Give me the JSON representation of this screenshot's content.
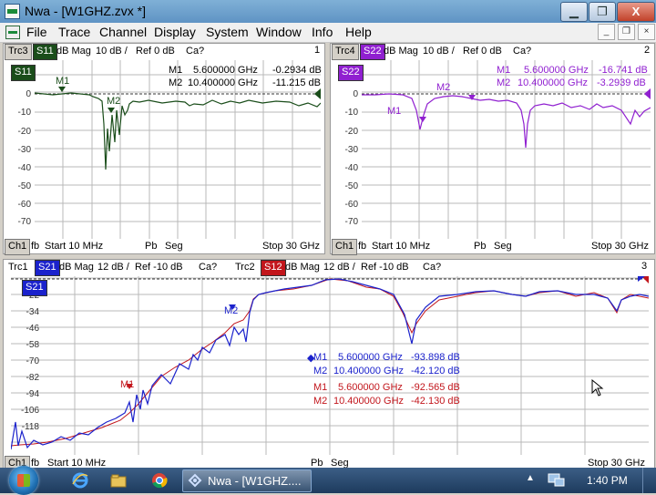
{
  "window": {
    "title": "Nwa - [W1GHZ.zvx *]",
    "minimize": "▁",
    "maximize": "❐",
    "close": "X"
  },
  "menu": {
    "items": [
      "File",
      "Trace",
      "Channel",
      "Display",
      "System",
      "Window",
      "Info",
      "Help"
    ],
    "mdi_min": "_",
    "mdi_restore": "❐",
    "mdi_close": "×"
  },
  "colors": {
    "s11": "#1a4d1a",
    "s22": "#9020d0",
    "s21": "#1b22cc",
    "s12": "#c2161c"
  },
  "panel1": {
    "trc": "Trc3",
    "sparam": "S11",
    "format": "dB Mag",
    "scale": "10 dB /",
    "ref": "Ref 0 dB",
    "cal": "Ca?",
    "num": "1",
    "chip": "S11",
    "yticks": [
      "0",
      "-10",
      "-20",
      "-30",
      "-40",
      "-50",
      "-60",
      "-70"
    ],
    "m1": {
      "name": "M1",
      "freq": "5.600000 GHz",
      "val": "-0.2934 dB"
    },
    "m2": {
      "name": "M2",
      "freq": "10.400000 GHz",
      "val": "-11.215 dB"
    },
    "bottom": {
      "ch": "Ch1",
      "fb": "fb",
      "start": "Start 10 MHz",
      "pb": "Pb",
      "seg": "Seg",
      "stop": "Stop 30 GHz"
    }
  },
  "panel2": {
    "trc": "Trc4",
    "sparam": "S22",
    "format": "dB Mag",
    "scale": "10 dB /",
    "ref": "Ref 0 dB",
    "cal": "Ca?",
    "num": "2",
    "chip": "S22",
    "yticks": [
      "0",
      "-10",
      "-20",
      "-30",
      "-40",
      "-50",
      "-60",
      "-70"
    ],
    "m1": {
      "name": "M1",
      "freq": "5.600000 GHz",
      "val": "-16.741 dB"
    },
    "m2": {
      "name": "M2",
      "freq": "10.400000 GHz",
      "val": "-3.2939 dB"
    },
    "bottom": {
      "ch": "Ch1",
      "fb": "fb",
      "start": "Start 10 MHz",
      "pb": "Pb",
      "seg": "Seg",
      "stop": "Stop 30 GHz"
    }
  },
  "panel3": {
    "trc1": "Trc1",
    "sparam1": "S21",
    "format1": "dB Mag",
    "scale1": "12 dB /",
    "ref1": "Ref -10 dB",
    "cal1": "Ca?",
    "trc2": "Trc2",
    "sparam2": "S12",
    "format2": "dB Mag",
    "scale2": "12 dB /",
    "ref2": "Ref -10 dB",
    "cal2": "Ca?",
    "num": "3",
    "chip": "S21",
    "yticks": [
      "-22",
      "-34",
      "-46",
      "-58",
      "-70",
      "-82",
      "-94",
      "-106",
      "-118"
    ],
    "trc1_m1": {
      "name": "M1",
      "freq": "5.600000 GHz",
      "val": "-93.898 dB"
    },
    "trc1_m2": {
      "name": "M2",
      "freq": "10.400000 GHz",
      "val": "-42.120 dB"
    },
    "trc2_m1": {
      "name": "M1",
      "freq": "5.600000 GHz",
      "val": "-92.565 dB"
    },
    "trc2_m2": {
      "name": "M2",
      "freq": "10.400000 GHz",
      "val": "-42.130 dB"
    },
    "bottom": {
      "ch": "Ch1",
      "fb": "fb",
      "start": "Start 10 MHz",
      "pb": "Pb",
      "seg": "Seg",
      "stop": "Stop 30 GHz"
    }
  },
  "taskbar": {
    "task": "Nwa - [W1GHZ....",
    "clock": "1:40 PM",
    "icons": [
      "start-orb",
      "ie-icon",
      "explorer-icon",
      "chrome-icon",
      "nwa-icon"
    ]
  }
}
